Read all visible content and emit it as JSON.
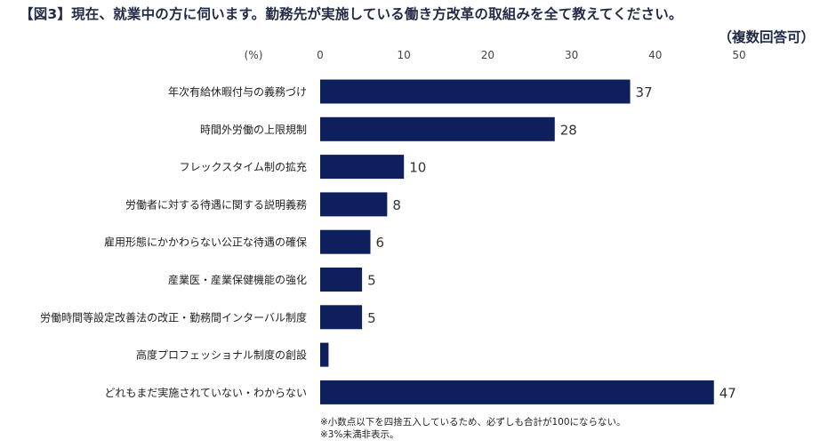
{
  "title": "【図3】現在、就業中の方に伺います。勤務先が実施している働き方改革の取組みを全て教えてください。",
  "subtitle": "（複数回答可）",
  "unit_label": "(%)",
  "notes": [
    "※小数点以下を四捨五入しているため、必ずしも合計が100にならない。",
    "※3%未満非表示。"
  ],
  "colors": {
    "bar": "#0d1f5c",
    "axis_text": "#444444",
    "label_text": "#222222"
  },
  "chart_data": {
    "type": "bar",
    "orientation": "horizontal",
    "categories": [
      "年次有給休暇付与の義務づけ",
      "時間外労働の上限規制",
      "フレックスタイム制の拡充",
      "労働者に対する待遇に関する説明義務",
      "雇用形態にかかわらない公正な待遇の確保",
      "産業医・産業保健機能の強化",
      "労働時間等設定改善法の改正・勤務間インターバル制度",
      "高度プロフェッショナル制度の創設",
      "どれもまだ実施されていない・わからない"
    ],
    "values": [
      37,
      28,
      10,
      8,
      6,
      5,
      5,
      1,
      47
    ],
    "data_labels": [
      "37",
      "28",
      "10",
      "8",
      "6",
      "5",
      "5",
      "",
      "47"
    ],
    "xlim": [
      0,
      50
    ],
    "xticks": [
      0,
      10,
      20,
      30,
      40,
      50
    ],
    "grid": false,
    "legend": "none"
  }
}
